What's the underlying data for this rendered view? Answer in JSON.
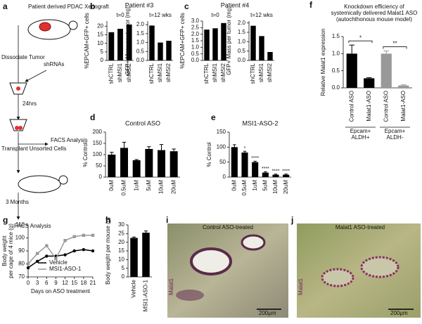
{
  "panels": [
    "a",
    "b",
    "c",
    "d",
    "e",
    "f",
    "g",
    "h",
    "i",
    "j"
  ],
  "diagram": {
    "xenograft": "Patient derived PDAC Xenograft",
    "dissociate": "Dissociate Tumor",
    "shrnas": "shRNAs",
    "incubation": "24hrs",
    "transplant": "Transplant Unsorted Cells",
    "facs1": "FACS Analysis",
    "time": "3 Months",
    "facs2": "FACS Analysis"
  },
  "images": [
    {
      "title": "Control ASO-treated",
      "stain": "Malat1",
      "scale": "200μm"
    },
    {
      "title": "Malat1 ASO-treated",
      "stain": "Malat1",
      "scale": "200μm"
    }
  ],
  "chart_data": [
    {
      "type": "bar",
      "title": "Patient #3",
      "subtitle": "t=0",
      "ylabel": "%EPCAM+GFP+ cells",
      "categories": [
        "shCTRL",
        "shMSI1",
        "shMSI2"
      ],
      "values": [
        16.5,
        18.5,
        21
      ],
      "color": "#000000",
      "ylim": [
        0,
        23
      ],
      "yticks": [
        0,
        5,
        10,
        15,
        20
      ]
    },
    {
      "type": "bar",
      "subtitle": "t=12 wks",
      "ylabel": "GFP+ Mass per tumor (mg)",
      "categories": [
        "shCTRL",
        "shMSI1",
        "shMSI2"
      ],
      "values": [
        1.95,
        1.0,
        1.1
      ],
      "color": "#000000",
      "ylim": [
        0,
        2.2
      ],
      "yticks": [
        {
          "value": 0,
          "label": "0.0"
        },
        0.5,
        {
          "value": 1,
          "label": "1.0"
        },
        1.5,
        {
          "value": 2,
          "label": "2.0"
        }
      ]
    },
    {
      "type": "bar",
      "title": "Patient #4",
      "subtitle": "t=0",
      "ylabel": "%EPCAM+GFP+ cells",
      "categories": [
        "shCTRL",
        "shMSI1",
        "shMSI2"
      ],
      "values": [
        2.35,
        2.45,
        2.85
      ],
      "color": "#000000",
      "ylim": [
        0,
        3
      ],
      "yticks": [
        {
          "value": 0,
          "label": "0.0"
        },
        0.5,
        {
          "value": 1,
          "label": "1.0"
        },
        1.5,
        {
          "value": 2,
          "label": "2.0"
        },
        2.5,
        {
          "value": 3,
          "label": "3.0"
        }
      ]
    },
    {
      "type": "bar",
      "subtitle": "t=12 wks",
      "ylabel": "GFP+ Mass per tumor (mg)",
      "categories": [
        "shCTRL",
        "shMSI1",
        "shMSI2"
      ],
      "values": [
        1.85,
        1.3,
        0.45
      ],
      "color": "#000000",
      "ylim": [
        0,
        2.1
      ],
      "yticks": [
        {
          "value": 0,
          "label": "0.0"
        },
        0.5,
        {
          "value": 1,
          "label": "1.0"
        },
        1.5,
        {
          "value": 2,
          "label": "2.0"
        }
      ]
    },
    {
      "type": "bar",
      "title": "Control ASO",
      "ylabel": "% Control",
      "categories": [
        "0uM",
        "0.5uM",
        "1uM",
        "5uM",
        "10uM",
        "20uM"
      ],
      "values": [
        100,
        130,
        75,
        125,
        120,
        115
      ],
      "errors": [
        10,
        25,
        3,
        10,
        25,
        10
      ],
      "color": "#000000",
      "ylim": [
        0,
        200
      ],
      "yticks": [
        0,
        50,
        100,
        150,
        200
      ]
    },
    {
      "type": "bar",
      "title": "MSI1-ASO-2",
      "ylabel": "% Control",
      "categories": [
        "0uM",
        "0.5uM",
        "1uM",
        "5uM",
        "10uM",
        "20uM"
      ],
      "values": [
        100,
        82,
        50,
        15,
        8,
        8
      ],
      "errors": [
        8,
        4,
        3,
        3,
        2,
        2
      ],
      "color": "#000000",
      "ylim": [
        0,
        150
      ],
      "yticks": [
        0,
        50,
        100,
        150
      ],
      "annotations": [
        null,
        "*",
        "****",
        "****",
        "****",
        "****"
      ]
    },
    {
      "type": "bar",
      "title": [
        "Knockdown efficiency of",
        "systemically delivered Malat1 ASO",
        "(autochthonous mouse model)"
      ],
      "ylabel": "Relative Malat1 expression",
      "categories": [
        "Control ASO",
        "Malat1-ASO",
        "Control ASO",
        "Malat1-ASO"
      ],
      "values": [
        1.0,
        0.28,
        1.0,
        0.07
      ],
      "errors": [
        0.25,
        0.02,
        0.08,
        0.02
      ],
      "colors": [
        "#000000",
        "#000000",
        "#999999",
        "#999999"
      ],
      "ylim": [
        0,
        1.5
      ],
      "yticks": [
        {
          "value": 0,
          "label": "0.0"
        },
        0.5,
        {
          "value": 1,
          "label": "1.0"
        },
        1.5
      ],
      "groups": [
        [
          "Epcam+",
          "ALDH+"
        ],
        [
          "Epcam+",
          "ALDH-"
        ]
      ],
      "annotations": [
        "*",
        "**"
      ]
    },
    {
      "type": "line",
      "ylabel": [
        "Body weight",
        "per cage of 4 mice (g)"
      ],
      "xlabel": "Days on ASO treatment",
      "x": [
        0,
        3,
        6,
        9,
        12,
        15,
        18,
        21
      ],
      "series": [
        {
          "name": "Vehicle",
          "color": "#000000",
          "values": [
            77,
            82,
            86,
            86,
            87,
            90,
            91,
            90
          ]
        },
        {
          "name": "MSI1-ASO-1",
          "color": "#999999",
          "values": [
            80,
            88,
            94,
            84,
            98,
            101,
            102,
            102
          ]
        }
      ],
      "xlim": [
        0,
        21
      ],
      "xticks": [
        0,
        3,
        6,
        9,
        12,
        15,
        18,
        21
      ],
      "ylim": [
        70,
        110
      ],
      "yticks": [
        70,
        80,
        90,
        100,
        110
      ],
      "legend": "lower right"
    },
    {
      "type": "bar",
      "ylabel": "Body weight per mouse (g)",
      "categories": [
        "Vehicle",
        "MSI1-ASO-1"
      ],
      "values": [
        22.5,
        25.5
      ],
      "errors": [
        0.5,
        1
      ],
      "color": "#000000",
      "ylim": [
        0,
        30
      ],
      "yticks": [
        0,
        5,
        10,
        15,
        20,
        25,
        30
      ]
    }
  ]
}
